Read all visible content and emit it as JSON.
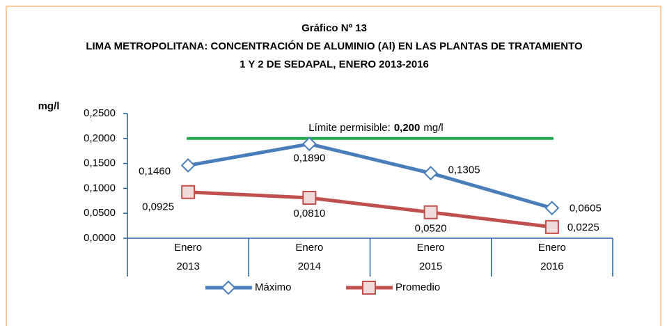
{
  "chart_data": {
    "type": "line",
    "title": "Gráfico Nº 13",
    "subtitle": [
      "LIMA METROPOLITANA: CONCENTRACIÓN DE ALUMINIO (Al) EN LAS PLANTAS DE TRATAMIENTO",
      "1 Y 2 DE SEDAPAL, ENERO 2013-2016"
    ],
    "y_label": "mg/l",
    "categories": [
      [
        "Enero",
        "2013"
      ],
      [
        "Enero",
        "2014"
      ],
      [
        "Enero",
        "2015"
      ],
      [
        "Enero",
        "2016"
      ]
    ],
    "series": [
      {
        "name": "Máximo",
        "color": "#4a7ebb",
        "marker": "diamond",
        "values": [
          0.146,
          0.189,
          0.1305,
          0.0605
        ],
        "value_labels": [
          "0,1460",
          "0,1890",
          "0,1305",
          "0,0605"
        ]
      },
      {
        "name": "Promedio",
        "color": "#c0504d",
        "marker": "square",
        "values": [
          0.0925,
          0.081,
          0.052,
          0.0225
        ],
        "value_labels": [
          "0,0925",
          "0,0810",
          "0,0520",
          "0,0225"
        ]
      }
    ],
    "threshold": {
      "value": 0.2,
      "label": "0,200",
      "prefix": "Límite permisible:",
      "suffix": "mg/l",
      "color": "#1aab48"
    },
    "ylim": [
      0,
      0.25
    ],
    "yticks": [
      {
        "value": 0,
        "label": "0,0000"
      },
      {
        "value": 0.05,
        "label": "0,0500"
      },
      {
        "value": 0.1,
        "label": "0,1000"
      },
      {
        "value": 0.15,
        "label": "0,1500"
      },
      {
        "value": 0.2,
        "label": "0,2000"
      },
      {
        "value": 0.25,
        "label": "0,2500"
      }
    ],
    "legend": "bottom"
  }
}
